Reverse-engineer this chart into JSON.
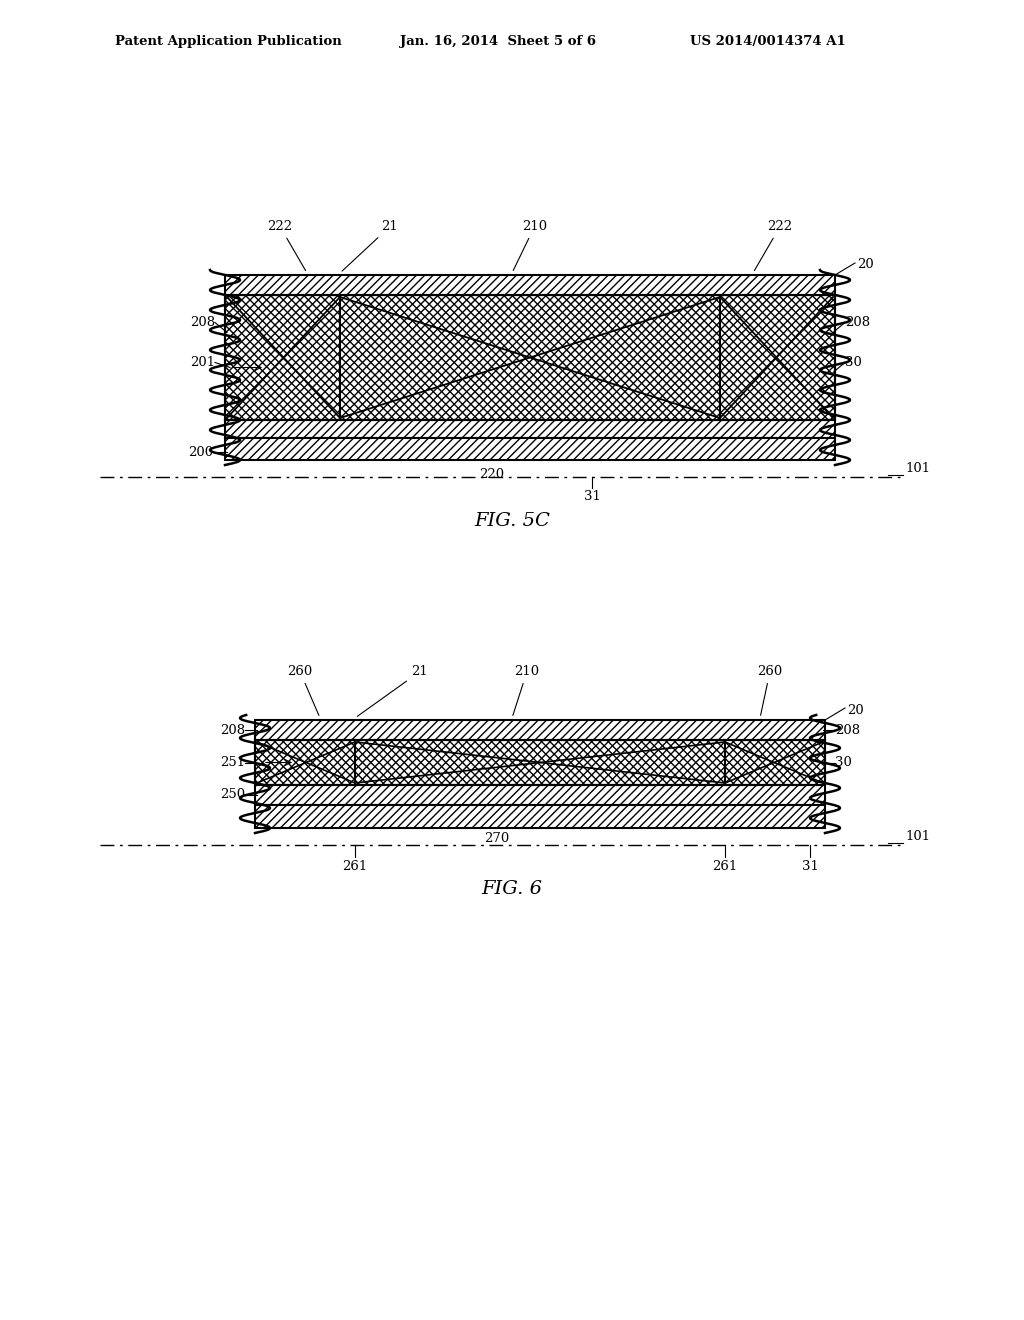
{
  "background_color": "#ffffff",
  "header_left": "Patent Application Publication",
  "header_center": "Jan. 16, 2014  Sheet 5 of 6",
  "header_right": "US 2014/0014374 A1",
  "fig5c_caption": "FIG. 5C",
  "fig6_caption": "FIG. 6",
  "line_color": "#000000",
  "lw": 1.5,
  "thin_lw": 0.8,
  "fs": 9.5
}
